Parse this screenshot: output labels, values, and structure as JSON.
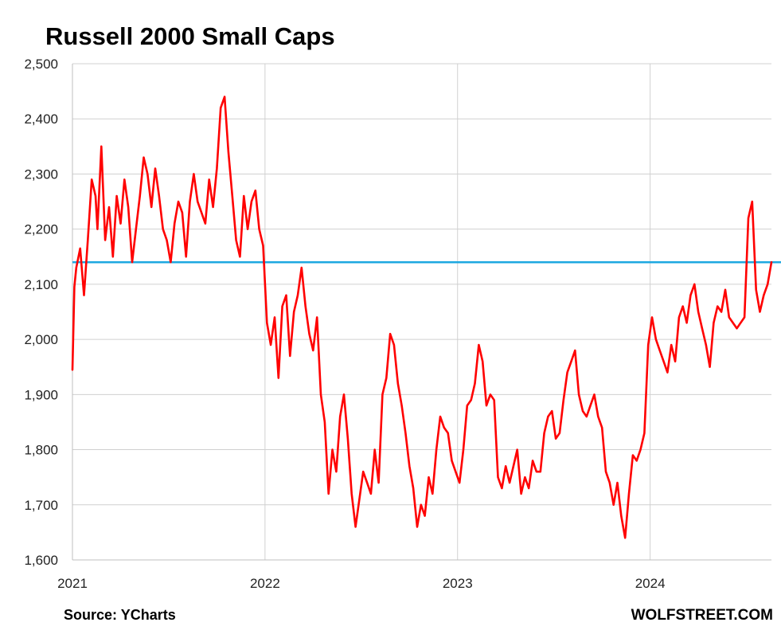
{
  "chart_data": {
    "type": "line",
    "title": "Russell 2000 Small Caps",
    "xlabel": "",
    "ylabel": "",
    "ylim": [
      1600,
      2500
    ],
    "yticks": [
      "1,600",
      "1,700",
      "1,800",
      "1,900",
      "2,000",
      "2,100",
      "2,200",
      "2,300",
      "2,400",
      "2,500"
    ],
    "ytick_values": [
      1600,
      1700,
      1800,
      1900,
      2000,
      2100,
      2200,
      2300,
      2400,
      2500
    ],
    "xlim": [
      2021.0,
      2024.63
    ],
    "xticks": [
      "2021",
      "2022",
      "2023",
      "2024"
    ],
    "xtick_values": [
      2021,
      2022,
      2023,
      2024
    ],
    "grid": true,
    "legend": "none",
    "series": [
      {
        "color": "#ff0000",
        "x": [
          2021.0,
          2021.01,
          2021.02,
          2021.04,
          2021.06,
          2021.08,
          2021.1,
          2021.12,
          2021.13,
          2021.15,
          2021.17,
          2021.19,
          2021.21,
          2021.23,
          2021.25,
          2021.27,
          2021.29,
          2021.31,
          2021.33,
          2021.35,
          2021.37,
          2021.39,
          2021.41,
          2021.43,
          2021.45,
          2021.47,
          2021.49,
          2021.51,
          2021.53,
          2021.55,
          2021.57,
          2021.59,
          2021.61,
          2021.63,
          2021.65,
          2021.67,
          2021.69,
          2021.71,
          2021.73,
          2021.75,
          2021.77,
          2021.79,
          2021.81,
          2021.83,
          2021.85,
          2021.87,
          2021.89,
          2021.91,
          2021.93,
          2021.95,
          2021.97,
          2021.99,
          2022.01,
          2022.03,
          2022.05,
          2022.07,
          2022.09,
          2022.11,
          2022.13,
          2022.15,
          2022.17,
          2022.19,
          2022.21,
          2022.23,
          2022.25,
          2022.27,
          2022.29,
          2022.31,
          2022.33,
          2022.35,
          2022.37,
          2022.39,
          2022.41,
          2022.43,
          2022.45,
          2022.47,
          2022.49,
          2022.51,
          2022.53,
          2022.55,
          2022.57,
          2022.59,
          2022.61,
          2022.63,
          2022.65,
          2022.67,
          2022.69,
          2022.71,
          2022.73,
          2022.75,
          2022.77,
          2022.79,
          2022.81,
          2022.83,
          2022.85,
          2022.87,
          2022.89,
          2022.91,
          2022.93,
          2022.95,
          2022.97,
          2022.99,
          2023.01,
          2023.03,
          2023.05,
          2023.07,
          2023.09,
          2023.11,
          2023.13,
          2023.15,
          2023.17,
          2023.19,
          2023.21,
          2023.23,
          2023.25,
          2023.27,
          2023.29,
          2023.31,
          2023.33,
          2023.35,
          2023.37,
          2023.39,
          2023.41,
          2023.43,
          2023.45,
          2023.47,
          2023.49,
          2023.51,
          2023.53,
          2023.55,
          2023.57,
          2023.59,
          2023.61,
          2023.63,
          2023.65,
          2023.67,
          2023.69,
          2023.71,
          2023.73,
          2023.75,
          2023.77,
          2023.79,
          2023.81,
          2023.83,
          2023.85,
          2023.87,
          2023.89,
          2023.91,
          2023.93,
          2023.95,
          2023.97,
          2023.99,
          2024.01,
          2024.03,
          2024.05,
          2024.07,
          2024.09,
          2024.11,
          2024.13,
          2024.15,
          2024.17,
          2024.19,
          2024.21,
          2024.23,
          2024.25,
          2024.27,
          2024.29,
          2024.31,
          2024.33,
          2024.35,
          2024.37,
          2024.39,
          2024.41,
          2024.43,
          2024.45,
          2024.47,
          2024.49,
          2024.51,
          2024.53,
          2024.55,
          2024.57,
          2024.59,
          2024.61,
          2024.63
        ],
        "values": [
          1945,
          2095,
          2130,
          2165,
          2080,
          2180,
          2290,
          2260,
          2200,
          2350,
          2180,
          2240,
          2150,
          2260,
          2210,
          2290,
          2240,
          2140,
          2200,
          2260,
          2330,
          2300,
          2240,
          2310,
          2260,
          2200,
          2180,
          2140,
          2210,
          2250,
          2230,
          2150,
          2250,
          2300,
          2250,
          2230,
          2210,
          2290,
          2240,
          2310,
          2420,
          2440,
          2340,
          2260,
          2180,
          2150,
          2260,
          2200,
          2250,
          2270,
          2200,
          2170,
          2030,
          1990,
          2040,
          1930,
          2060,
          2080,
          1970,
          2050,
          2080,
          2130,
          2060,
          2010,
          1980,
          2040,
          1900,
          1850,
          1720,
          1800,
          1760,
          1860,
          1900,
          1820,
          1720,
          1660,
          1710,
          1760,
          1740,
          1720,
          1800,
          1740,
          1900,
          1930,
          2010,
          1990,
          1920,
          1880,
          1830,
          1770,
          1730,
          1660,
          1700,
          1680,
          1750,
          1720,
          1800,
          1860,
          1840,
          1830,
          1780,
          1760,
          1740,
          1800,
          1880,
          1890,
          1920,
          1990,
          1960,
          1880,
          1900,
          1890,
          1750,
          1730,
          1770,
          1740,
          1770,
          1800,
          1720,
          1750,
          1730,
          1780,
          1760,
          1760,
          1830,
          1860,
          1870,
          1820,
          1830,
          1890,
          1940,
          1960,
          1980,
          1900,
          1870,
          1860,
          1880,
          1900,
          1860,
          1840,
          1760,
          1740,
          1700,
          1740,
          1680,
          1640,
          1720,
          1790,
          1780,
          1800,
          1830,
          1990,
          2040,
          2000,
          1980,
          1960,
          1940,
          1990,
          1960,
          2040,
          2060,
          2030,
          2080,
          2100,
          2050,
          2020,
          1990,
          1950,
          2030,
          2060,
          2050,
          2090,
          2040,
          2030,
          2020,
          2030,
          2040,
          2220,
          2250,
          2090,
          2050,
          2080,
          2100,
          2140
        ]
      }
    ],
    "reference_line": {
      "value": 2140,
      "color": "#1ea8e0"
    }
  },
  "footer": {
    "source": "Source: YCharts",
    "brand": "WOLFSTREET.COM"
  }
}
